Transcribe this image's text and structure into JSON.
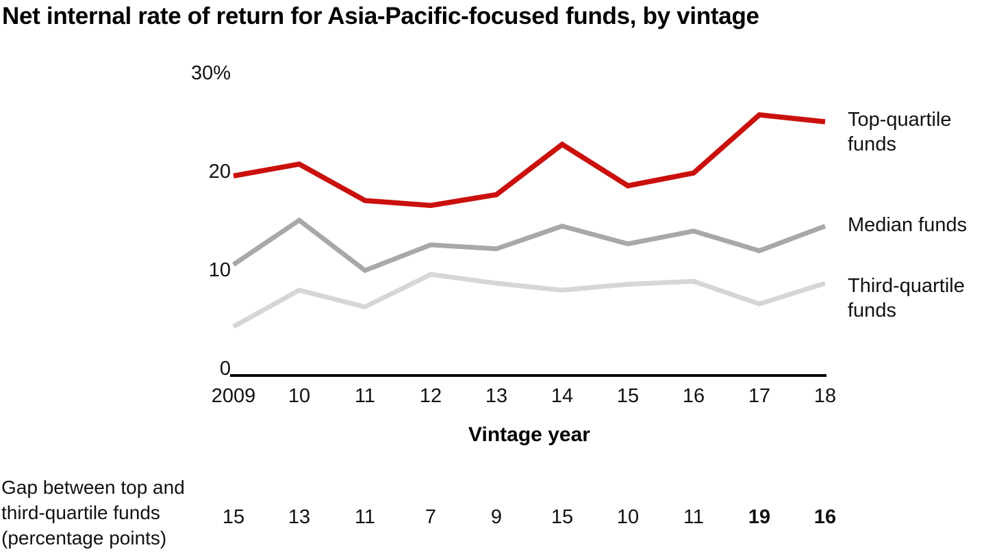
{
  "title": "Net internal rate of return for Asia-Pacific-focused funds, by vintage",
  "colors": {
    "top_quartile": "#ca100d",
    "median": "#a8a8a8",
    "third_quartile": "#d6d6d6",
    "axis": "#000000",
    "text": "#111111",
    "gap_highlight": "#c9100f"
  },
  "chart_data": {
    "type": "line",
    "title": "Net internal rate of return for Asia-Pacific-focused funds, by vintage",
    "xlabel": "Vintage year",
    "ylabel": "",
    "y_unit": "%",
    "grid": false,
    "legend_position": "right",
    "categories": [
      "2009",
      "10",
      "11",
      "12",
      "13",
      "14",
      "15",
      "16",
      "17",
      "18"
    ],
    "ylim": [
      0,
      30
    ],
    "y_ticks": [
      0,
      10,
      20,
      30
    ],
    "y_tick_labels": [
      "0",
      "10",
      "20",
      "30%"
    ],
    "series": [
      {
        "name": "Top-quartile funds",
        "color": "#ca100d",
        "values": [
          19.5,
          20.7,
          17.0,
          16.5,
          17.6,
          22.7,
          18.5,
          19.8,
          25.7,
          25.0
        ]
      },
      {
        "name": "Median funds",
        "color": "#a8a8a8",
        "values": [
          10.5,
          15.0,
          9.9,
          12.5,
          12.1,
          14.4,
          12.6,
          13.9,
          11.9,
          14.4
        ]
      },
      {
        "name": "Third-quartile funds",
        "color": "#d6d6d6",
        "values": [
          4.2,
          7.9,
          6.2,
          9.5,
          8.6,
          7.9,
          8.5,
          8.8,
          6.5,
          8.6
        ]
      }
    ],
    "gap_row": {
      "label_lines": [
        "Gap between top and",
        "third-quartile funds",
        "(percentage points)"
      ],
      "values": [
        15,
        13,
        11,
        7,
        9,
        15,
        10,
        11,
        19,
        16
      ],
      "highlight_indices": [
        8,
        9
      ]
    }
  }
}
